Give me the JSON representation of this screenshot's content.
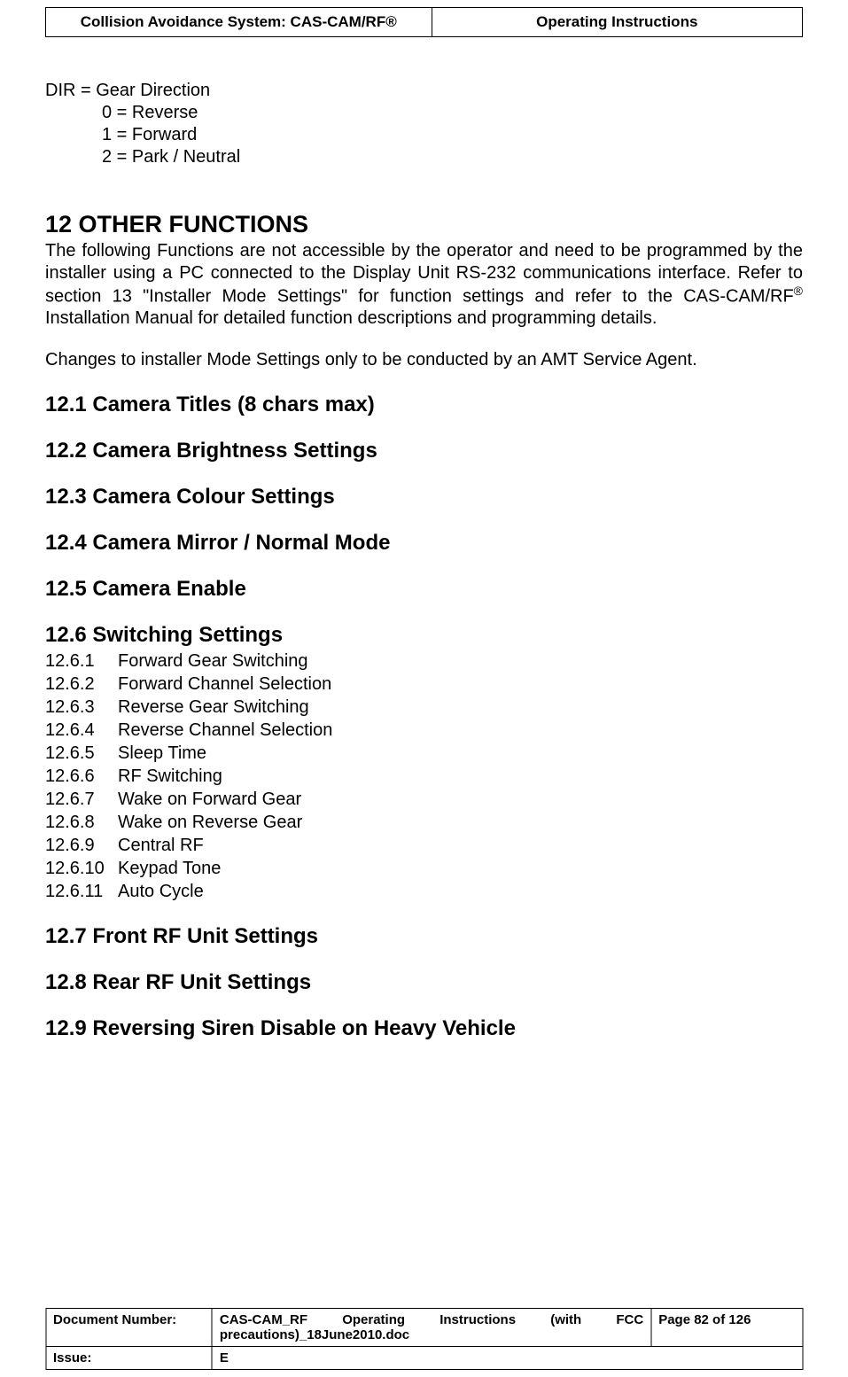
{
  "header": {
    "left": "Collision Avoidance System: CAS-CAM/RF®",
    "right": "Operating Instructions"
  },
  "dir": {
    "title": "DIR = Gear Direction",
    "items": [
      "0 = Reverse",
      "1 = Forward",
      "2 = Park / Neutral"
    ]
  },
  "section12": {
    "heading": "12  OTHER FUNCTIONS",
    "para1_a": "The following Functions are not accessible by the operator and need to be programmed by the installer using a PC connected to the Display Unit RS-232 communications interface. Refer to section 13 \"Installer Mode Settings\" for function settings and refer to the CAS-CAM/RF",
    "para1_sup": "®",
    "para1_b": " Installation Manual for detailed function descriptions and programming details.",
    "para2": "Changes to installer Mode Settings only to be conducted by an AMT Service Agent."
  },
  "subsections": {
    "s12_1": "12.1 Camera Titles (8 chars max)",
    "s12_2": "12.2 Camera Brightness Settings",
    "s12_3": "12.3 Camera Colour Settings",
    "s12_4": "12.4 Camera Mirror / Normal Mode",
    "s12_5": "12.5 Camera Enable",
    "s12_6": "12.6 Switching Settings",
    "s12_6_items": [
      {
        "num": "12.6.1",
        "label": "Forward Gear Switching"
      },
      {
        "num": "12.6.2",
        "label": "Forward Channel Selection"
      },
      {
        "num": "12.6.3",
        "label": "Reverse Gear Switching"
      },
      {
        "num": "12.6.4",
        "label": "Reverse Channel Selection"
      },
      {
        "num": "12.6.5",
        "label": "Sleep Time"
      },
      {
        "num": "12.6.6",
        "label": "RF Switching"
      },
      {
        "num": "12.6.7",
        "label": "Wake on Forward Gear"
      },
      {
        "num": "12.6.8",
        "label": "Wake on Reverse Gear"
      },
      {
        "num": "12.6.9",
        "label": "Central RF"
      },
      {
        "num": "12.6.10",
        "label": "Keypad Tone"
      },
      {
        "num": "12.6.11",
        "label": "Auto Cycle"
      }
    ],
    "s12_7": "12.7 Front RF Unit Settings",
    "s12_8": "12.8 Rear RF Unit Settings",
    "s12_9": "12.9 Reversing Siren Disable on Heavy Vehicle"
  },
  "footer": {
    "doc_label": "Document Number:",
    "doc_value": "CAS-CAM_RF Operating Instructions (with FCC precautions)_18June2010.doc",
    "page_value": "Page 82 of  126",
    "issue_label": "Issue:",
    "issue_value": "E"
  }
}
